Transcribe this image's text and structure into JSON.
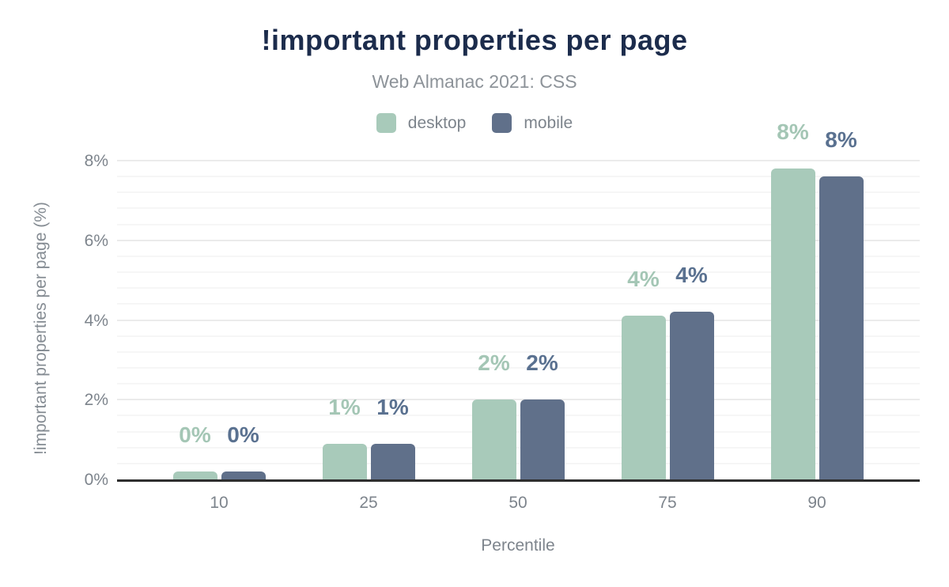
{
  "header": {
    "title": "!important properties per page",
    "subtitle": "Web Almanac 2021: CSS"
  },
  "legend": [
    {
      "label": "desktop",
      "color": "#a8caba"
    },
    {
      "label": "mobile",
      "color": "#60708a"
    }
  ],
  "axes": {
    "y_title": "!important properties per page (%)",
    "x_title": "Percentile",
    "y_ticks": [
      "0%",
      "2%",
      "4%",
      "6%",
      "8%"
    ],
    "x_ticks": [
      "10",
      "25",
      "50",
      "75",
      "90"
    ]
  },
  "chart_data": {
    "type": "bar",
    "title": "!important properties per page",
    "subtitle": "Web Almanac 2021: CSS",
    "categories": [
      "10",
      "25",
      "50",
      "75",
      "90"
    ],
    "series": [
      {
        "name": "desktop",
        "color": "#a8caba",
        "label_color": "#a4c6b5",
        "values": [
          0.2,
          0.9,
          2.0,
          4.1,
          7.8
        ],
        "labels": [
          "0%",
          "1%",
          "2%",
          "4%",
          "8%"
        ]
      },
      {
        "name": "mobile",
        "color": "#60708a",
        "label_color": "#5a7190",
        "values": [
          0.2,
          0.9,
          2.0,
          4.2,
          7.6
        ],
        "labels": [
          "0%",
          "1%",
          "2%",
          "4%",
          "8%"
        ]
      }
    ],
    "xlabel": "Percentile",
    "ylabel": "!important properties per page (%)",
    "ylim": [
      0,
      8
    ],
    "y_tick_step": 2,
    "y_minor_step": 0.4,
    "grid": true,
    "legend_position": "top"
  },
  "colors": {
    "title": "#1c2c4c",
    "subtitle": "#8d9399",
    "axis_text": "#7d848c",
    "axis_line": "#2e2e2e",
    "grid_major": "#ebebeb",
    "grid_minor": "#f6f6f6",
    "background": "#ffffff"
  }
}
